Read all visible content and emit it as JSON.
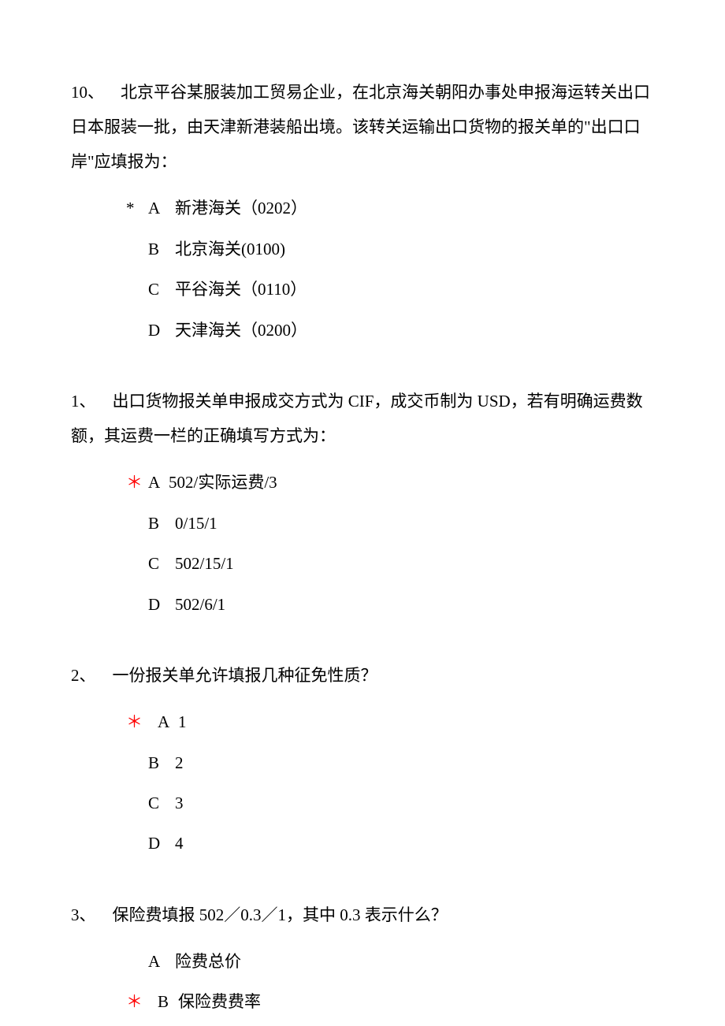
{
  "questions": [
    {
      "num": "10、",
      "text": "北京平谷某服装加工贸易企业，在北京海关朝阳办事处申报海运转关出口日本服装一批，由天津新港装船出境。该转关运输出口货物的报关单的\"出口口岸\"应填报为：",
      "options": [
        {
          "marker": "*",
          "markerColor": "black",
          "label": "A",
          "text": "新港海关（0202）"
        },
        {
          "marker": "",
          "markerColor": "",
          "label": "B",
          "text": "北京海关(0100)"
        },
        {
          "marker": "",
          "markerColor": "",
          "label": "C",
          "text": "平谷海关（0110）"
        },
        {
          "marker": "",
          "markerColor": "",
          "label": "D",
          "text": "天津海关（0200）"
        }
      ]
    },
    {
      "num": "1、",
      "text": "出口货物报关单申报成交方式为 CIF，成交币制为 USD，若有明确运费数额，其运费一栏的正确填写方式为：",
      "options": [
        {
          "marker": "＊",
          "markerColor": "red",
          "label": "A",
          "text": "502/实际运费/3",
          "tight": true
        },
        {
          "marker": "",
          "markerColor": "",
          "label": "B",
          "text": "0/15/1"
        },
        {
          "marker": "",
          "markerColor": "",
          "label": "C",
          "text": "502/15/1"
        },
        {
          "marker": "",
          "markerColor": "",
          "label": "D",
          "text": "502/6/1"
        }
      ]
    },
    {
      "num": "2、",
      "text": "一份报关单允许填报几种征免性质？",
      "options": [
        {
          "marker": "＊",
          "markerColor": "red",
          "label": "A",
          "text": "1",
          "tight": true,
          "extraIndent": true
        },
        {
          "marker": "",
          "markerColor": "",
          "label": "B",
          "text": "2"
        },
        {
          "marker": "",
          "markerColor": "",
          "label": "C",
          "text": "3"
        },
        {
          "marker": "",
          "markerColor": "",
          "label": "D",
          "text": "4"
        }
      ]
    },
    {
      "num": "3、",
      "text": "保险费填报 502／0.3／1，其中 0.3 表示什么？",
      "options": [
        {
          "marker": "",
          "markerColor": "",
          "label": "A",
          "text": "险费总价"
        },
        {
          "marker": "＊",
          "markerColor": "red",
          "label": "B",
          "text": "保险费费率",
          "tight": true,
          "extraIndent": true
        }
      ]
    }
  ]
}
